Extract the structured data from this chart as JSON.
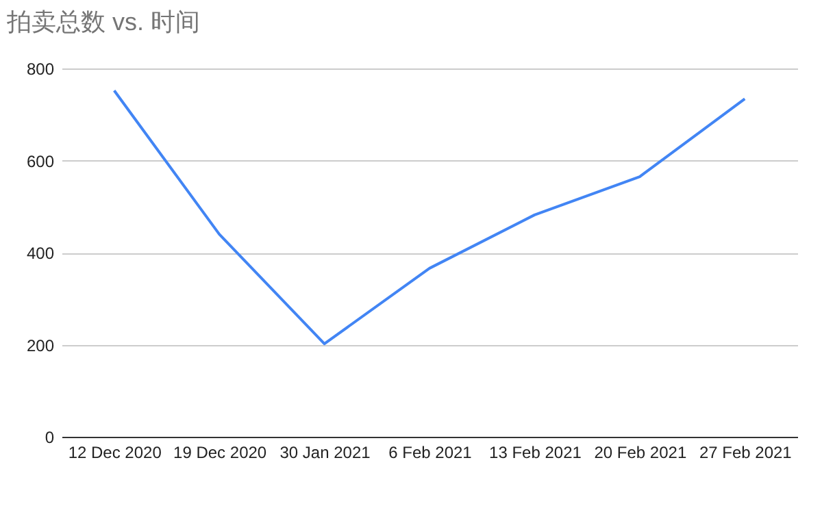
{
  "chart_data": {
    "type": "line",
    "title": "拍卖总数 vs. 时间",
    "categories": [
      "12 Dec 2020",
      "19 Dec 2020",
      "30 Jan 2021",
      "6 Feb 2021",
      "13 Feb 2021",
      "20 Feb 2021",
      "27 Feb 2021"
    ],
    "series": [
      {
        "color": "#4285f4",
        "values": [
          752,
          440,
          202,
          366,
          482,
          565,
          734
        ]
      }
    ],
    "ylim": [
      0,
      800
    ],
    "yticks": [
      0,
      200,
      400,
      600,
      800
    ],
    "grid": "y",
    "legend": false,
    "marker": "none",
    "line_style": "solid"
  }
}
